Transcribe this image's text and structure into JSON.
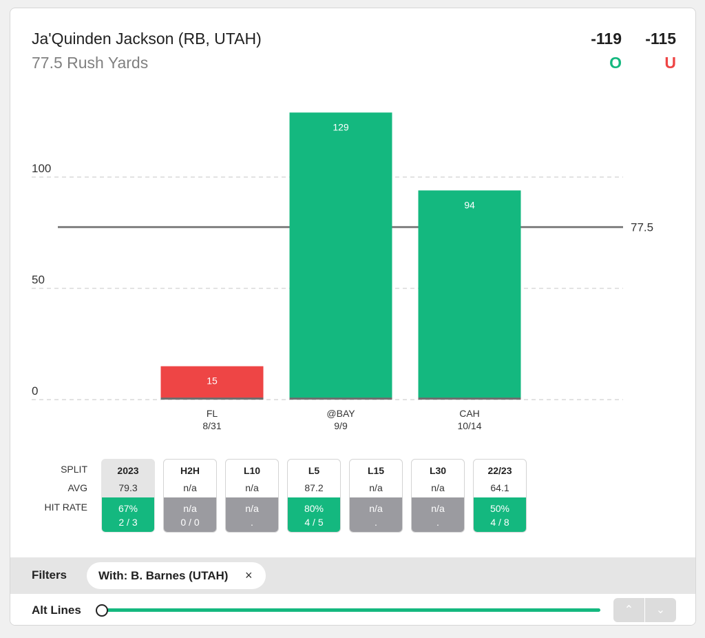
{
  "header": {
    "player": "Ja'Quinden Jackson (RB, UTAH)",
    "prop": "77.5 Rush Yards",
    "over_odds": "-119",
    "under_odds": "-115",
    "over_label": "O",
    "under_label": "U"
  },
  "colors": {
    "over": "#14b87f",
    "under": "#ee4545",
    "neutral": "#9b9ba0",
    "line": "#808080"
  },
  "chart_data": {
    "type": "bar",
    "categories": [
      "FL",
      "@BAY",
      "CAH"
    ],
    "dates": [
      "8/31",
      "9/9",
      "10/14"
    ],
    "values": [
      15,
      129,
      94
    ],
    "line_value": 77.5,
    "line_label": "77.5",
    "yticks": [
      0,
      50,
      100
    ],
    "ylim": [
      0,
      129
    ],
    "grid": true
  },
  "splits": {
    "row_labels": {
      "split": "SPLIT",
      "avg": "AVG",
      "hit_rate": "HIT RATE"
    },
    "items": [
      {
        "name": "2023",
        "avg": "79.3",
        "pct": "67%",
        "count": "2 / 3",
        "status": "over",
        "active": true
      },
      {
        "name": "H2H",
        "avg": "n/a",
        "pct": "n/a",
        "count": "0 / 0",
        "status": "neutral",
        "active": false
      },
      {
        "name": "L10",
        "avg": "n/a",
        "pct": "n/a",
        "count": ".",
        "status": "neutral",
        "active": false
      },
      {
        "name": "L5",
        "avg": "87.2",
        "pct": "80%",
        "count": "4 / 5",
        "status": "over",
        "active": false
      },
      {
        "name": "L15",
        "avg": "n/a",
        "pct": "n/a",
        "count": ".",
        "status": "neutral",
        "active": false
      },
      {
        "name": "L30",
        "avg": "n/a",
        "pct": "n/a",
        "count": ".",
        "status": "neutral",
        "active": false
      },
      {
        "name": "22/23",
        "avg": "64.1",
        "pct": "50%",
        "count": "4 / 8",
        "status": "over",
        "active": false
      }
    ]
  },
  "filters": {
    "label": "Filters",
    "chip": "With: B. Barnes (UTAH)",
    "chip_close": "×"
  },
  "alt_lines": {
    "label": "Alt Lines",
    "up": "⌃",
    "down": "⌄"
  }
}
